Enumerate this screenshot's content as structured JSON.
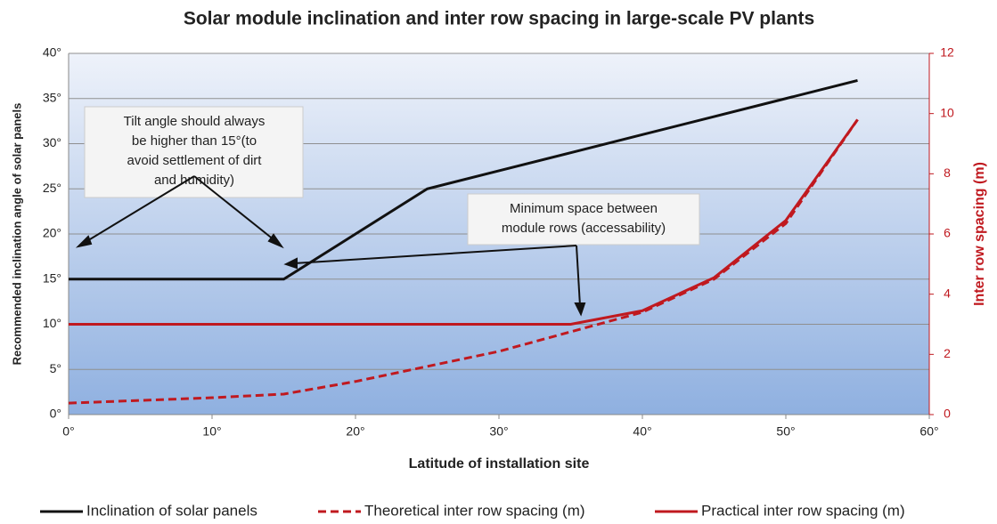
{
  "chart_data": {
    "type": "line",
    "title": "Solar module inclination and inter row spacing in large-scale PV plants",
    "x_label": "Latitude of installation site",
    "y_label": "Recommended inclination angle of solar panels",
    "y2_label": "Inter row spacing (m)",
    "x": [
      0,
      5,
      10,
      15,
      20,
      25,
      30,
      35,
      40,
      45,
      50,
      55
    ],
    "xlim": [
      0,
      60
    ],
    "xticks": [
      {
        "value": 0,
        "label": "0°"
      },
      {
        "value": 10,
        "label": "10°"
      },
      {
        "value": 20,
        "label": "20°"
      },
      {
        "value": 30,
        "label": "30°"
      },
      {
        "value": 40,
        "label": "40°"
      },
      {
        "value": 50,
        "label": "50°"
      },
      {
        "value": 60,
        "label": "60°"
      }
    ],
    "ylim": [
      0,
      40
    ],
    "yticks": [
      {
        "value": 0,
        "label": "0°"
      },
      {
        "value": 5,
        "label": "5°"
      },
      {
        "value": 10,
        "label": "10°"
      },
      {
        "value": 15,
        "label": "15°"
      },
      {
        "value": 20,
        "label": "20°"
      },
      {
        "value": 25,
        "label": "25°"
      },
      {
        "value": 30,
        "label": "30°"
      },
      {
        "value": 35,
        "label": "35°"
      },
      {
        "value": 40,
        "label": "40°"
      }
    ],
    "y2lim": [
      0,
      12
    ],
    "y2ticks": [
      0,
      2,
      4,
      6,
      8,
      10,
      12
    ],
    "grid": true,
    "series": [
      {
        "name": "Inclination of solar panels",
        "color": "#111111",
        "style": "solid",
        "values": [
          15,
          15,
          15,
          15,
          20,
          25,
          27,
          29,
          31,
          33,
          35,
          37
        ]
      },
      {
        "name": "Theoretical inter row spacing (m)",
        "color": "#c0191f",
        "style": "dashed",
        "axis": "y2",
        "values": [
          0.38,
          0.47,
          0.56,
          0.68,
          1.1,
          1.6,
          2.1,
          2.75,
          3.4,
          4.5,
          6.35,
          9.8
        ]
      },
      {
        "name": "Practical inter row spacing (m)",
        "color": "#c0191f",
        "style": "solid",
        "axis": "y2",
        "values": [
          3,
          3,
          3,
          3,
          3,
          3,
          3,
          3,
          3.45,
          4.55,
          6.45,
          9.8
        ]
      }
    ],
    "annotations": [
      {
        "lines": [
          "Tilt angle should always",
          "be higher than 15°(to",
          "avoid settlement of dirt",
          "and humidity)"
        ]
      },
      {
        "lines": [
          "Minimum space between",
          "module rows (accessability)"
        ]
      }
    ]
  }
}
